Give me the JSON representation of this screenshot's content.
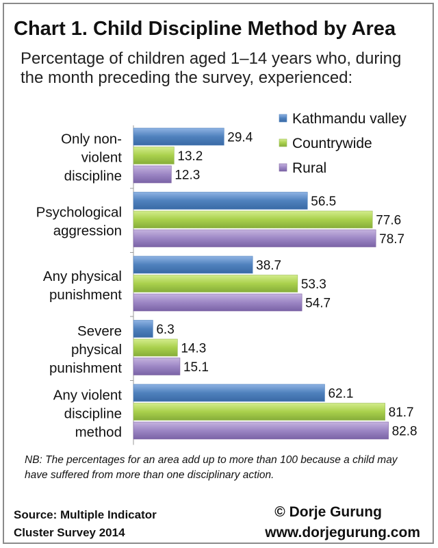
{
  "chart_data": {
    "type": "bar",
    "orientation": "horizontal",
    "title": "Chart 1. Child Discipline Method by Area",
    "subtitle": "Percentage of children aged 1–14 years who, during the month preceding the survey, experienced:",
    "categories": [
      [
        "Only non-",
        "violent",
        "discipline"
      ],
      [
        "Psychological",
        "aggression"
      ],
      [
        "Any physical",
        "punishment"
      ],
      [
        "Severe",
        "physical",
        "punishment"
      ],
      [
        "Any violent",
        "discipline",
        "method"
      ]
    ],
    "series": [
      {
        "name": "Kathmandu valley",
        "values": [
          29.4,
          56.5,
          38.7,
          6.3,
          62.1
        ],
        "color": "#4f81bd"
      },
      {
        "name": "Countrywide",
        "values": [
          13.2,
          77.6,
          53.3,
          14.3,
          81.7
        ],
        "color": "#9bbb59"
      },
      {
        "name": "Rural",
        "values": [
          12.3,
          78.7,
          54.7,
          15.1,
          82.8
        ],
        "color": "#8064a2"
      }
    ],
    "xlim": [
      0,
      100
    ],
    "grid": false,
    "legend": "top-right",
    "data_labels": true
  },
  "footnote": "NB: The percentages for an area add up to more than 100 because a child may have suffered from more than one disciplinary action.",
  "source": {
    "line1": "Source: Multiple Indicator",
    "line2": "Cluster Survey 2014"
  },
  "credit": {
    "copyright": "© Dorje Gurung",
    "website": "www.dorjegurung.com"
  }
}
